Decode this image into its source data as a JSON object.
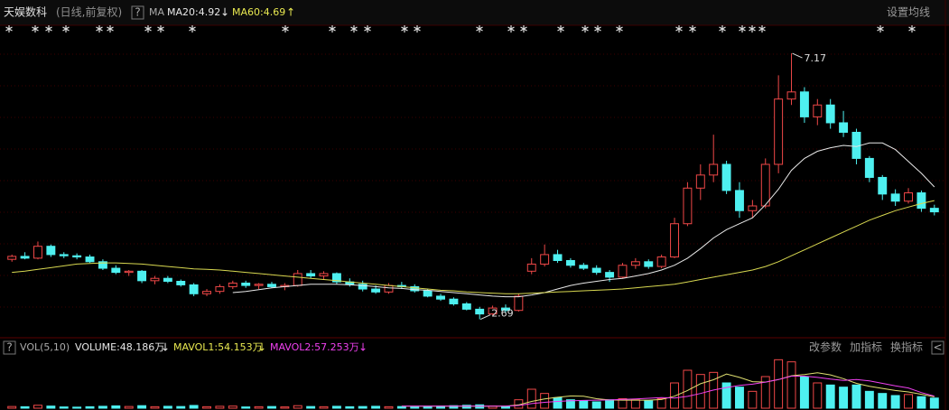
{
  "header": {
    "name": "天娱数科",
    "period": "(日线,前复权)",
    "help": "?",
    "indicator": "MA",
    "ma20": "MA20:4.92",
    "ma20_arrow": "↓",
    "ma60": "MA60:4.69",
    "ma60_arrow": "↑",
    "settings": "设置均线"
  },
  "volume_header": {
    "help": "?",
    "indicator": "VOL(5,10)",
    "volume": "VOLUME:48.186万",
    "volume_arrow": "↓",
    "mavol1": "MAVOL1:54.153万",
    "mavol1_arrow": "↓",
    "mavol2": "MAVOL2:57.253万",
    "mavol2_arrow": "↓",
    "edit": "改参数",
    "add": "加指标",
    "switch": "换指标",
    "collapse": "<"
  },
  "chart_data": {
    "type": "candlestick",
    "ylim": [
      2.44,
      7.46
    ],
    "up_color": "#f04848",
    "down_color": "#4ef0f0",
    "candles": [
      [
        3.7,
        3.78,
        3.66,
        3.75
      ],
      [
        3.75,
        3.82,
        3.7,
        3.72
      ],
      [
        3.72,
        4.0,
        3.7,
        3.92
      ],
      [
        3.92,
        3.95,
        3.74,
        3.78
      ],
      [
        3.78,
        3.82,
        3.72,
        3.76
      ],
      [
        3.76,
        3.8,
        3.7,
        3.74
      ],
      [
        3.74,
        3.78,
        3.64,
        3.66
      ],
      [
        3.66,
        3.7,
        3.52,
        3.55
      ],
      [
        3.55,
        3.6,
        3.45,
        3.48
      ],
      [
        3.48,
        3.52,
        3.42,
        3.5
      ],
      [
        3.5,
        3.52,
        3.3,
        3.34
      ],
      [
        3.34,
        3.42,
        3.28,
        3.38
      ],
      [
        3.38,
        3.42,
        3.3,
        3.33
      ],
      [
        3.33,
        3.36,
        3.24,
        3.27
      ],
      [
        3.27,
        3.3,
        3.08,
        3.12
      ],
      [
        3.12,
        3.2,
        3.08,
        3.16
      ],
      [
        3.16,
        3.28,
        3.12,
        3.24
      ],
      [
        3.24,
        3.34,
        3.2,
        3.3
      ],
      [
        3.3,
        3.34,
        3.22,
        3.26
      ],
      [
        3.26,
        3.3,
        3.2,
        3.28
      ],
      [
        3.28,
        3.32,
        3.22,
        3.24
      ],
      [
        3.24,
        3.3,
        3.18,
        3.26
      ],
      [
        3.26,
        3.52,
        3.24,
        3.46
      ],
      [
        3.46,
        3.52,
        3.38,
        3.42
      ],
      [
        3.42,
        3.5,
        3.36,
        3.46
      ],
      [
        3.46,
        3.48,
        3.28,
        3.32
      ],
      [
        3.32,
        3.38,
        3.24,
        3.28
      ],
      [
        3.28,
        3.34,
        3.16,
        3.2
      ],
      [
        3.2,
        3.26,
        3.12,
        3.15
      ],
      [
        3.15,
        3.3,
        3.12,
        3.26
      ],
      [
        3.26,
        3.32,
        3.2,
        3.24
      ],
      [
        3.24,
        3.28,
        3.14,
        3.17
      ],
      [
        3.17,
        3.2,
        3.06,
        3.08
      ],
      [
        3.08,
        3.12,
        3.0,
        3.03
      ],
      [
        3.03,
        3.06,
        2.92,
        2.95
      ],
      [
        2.95,
        2.98,
        2.84,
        2.86
      ],
      [
        2.86,
        2.9,
        2.69,
        2.78
      ],
      [
        2.78,
        2.92,
        2.76,
        2.88
      ],
      [
        2.88,
        2.94,
        2.8,
        2.84
      ],
      [
        2.84,
        3.12,
        2.82,
        3.08
      ],
      [
        3.5,
        3.72,
        3.45,
        3.62
      ],
      [
        3.62,
        3.95,
        3.58,
        3.78
      ],
      [
        3.78,
        3.86,
        3.64,
        3.68
      ],
      [
        3.68,
        3.72,
        3.56,
        3.6
      ],
      [
        3.6,
        3.64,
        3.52,
        3.55
      ],
      [
        3.55,
        3.6,
        3.44,
        3.48
      ],
      [
        3.48,
        3.52,
        3.32,
        3.4
      ],
      [
        3.4,
        3.64,
        3.38,
        3.6
      ],
      [
        3.6,
        3.72,
        3.54,
        3.66
      ],
      [
        3.66,
        3.7,
        3.54,
        3.58
      ],
      [
        3.58,
        3.78,
        3.55,
        3.74
      ],
      [
        3.74,
        4.4,
        3.72,
        4.3
      ],
      [
        4.3,
        5.0,
        4.26,
        4.9
      ],
      [
        4.9,
        5.3,
        4.7,
        5.12
      ],
      [
        5.12,
        5.8,
        5.0,
        5.3
      ],
      [
        5.3,
        5.36,
        4.8,
        4.86
      ],
      [
        4.86,
        5.0,
        4.4,
        4.52
      ],
      [
        4.52,
        4.7,
        4.4,
        4.6
      ],
      [
        4.6,
        5.4,
        4.56,
        5.3
      ],
      [
        5.3,
        6.8,
        5.15,
        6.4
      ],
      [
        6.4,
        7.17,
        6.3,
        6.52
      ],
      [
        6.52,
        6.6,
        6.0,
        6.1
      ],
      [
        6.1,
        6.4,
        5.96,
        6.3
      ],
      [
        6.3,
        6.4,
        5.9,
        6.0
      ],
      [
        6.0,
        6.2,
        5.76,
        5.84
      ],
      [
        5.84,
        5.9,
        5.3,
        5.4
      ],
      [
        5.4,
        5.44,
        5.0,
        5.08
      ],
      [
        5.08,
        5.12,
        4.7,
        4.8
      ],
      [
        4.8,
        4.88,
        4.6,
        4.68
      ],
      [
        4.68,
        4.9,
        4.64,
        4.82
      ],
      [
        4.82,
        4.86,
        4.5,
        4.56
      ],
      [
        4.56,
        4.62,
        4.44,
        4.5
      ]
    ],
    "ma_series": [
      {
        "color": "#e8e8e8",
        "values": [
          null,
          null,
          null,
          null,
          null,
          null,
          null,
          null,
          null,
          null,
          null,
          null,
          null,
          null,
          null,
          null,
          null,
          3.14,
          3.16,
          3.19,
          3.22,
          3.24,
          3.26,
          3.28,
          3.28,
          3.28,
          3.27,
          3.26,
          3.24,
          3.22,
          3.21,
          3.19,
          3.18,
          3.16,
          3.14,
          3.12,
          3.1,
          3.08,
          3.07,
          3.07,
          3.1,
          3.14,
          3.2,
          3.26,
          3.3,
          3.33,
          3.36,
          3.38,
          3.42,
          3.46,
          3.52,
          3.6,
          3.72,
          3.88,
          4.06,
          4.2,
          4.3,
          4.4,
          4.62,
          4.88,
          5.2,
          5.4,
          5.52,
          5.58,
          5.62,
          5.6,
          5.66,
          5.66,
          5.55,
          5.35,
          5.15,
          4.92
        ]
      },
      {
        "color": "#d8d850",
        "values": [
          3.48,
          3.5,
          3.53,
          3.56,
          3.59,
          3.62,
          3.63,
          3.64,
          3.64,
          3.63,
          3.62,
          3.6,
          3.58,
          3.56,
          3.54,
          3.53,
          3.52,
          3.5,
          3.48,
          3.46,
          3.44,
          3.42,
          3.4,
          3.38,
          3.36,
          3.34,
          3.32,
          3.3,
          3.28,
          3.26,
          3.24,
          3.22,
          3.2,
          3.18,
          3.17,
          3.15,
          3.14,
          3.13,
          3.12,
          3.12,
          3.13,
          3.14,
          3.15,
          3.16,
          3.17,
          3.18,
          3.19,
          3.2,
          3.22,
          3.24,
          3.26,
          3.28,
          3.32,
          3.36,
          3.4,
          3.44,
          3.48,
          3.52,
          3.58,
          3.66,
          3.76,
          3.86,
          3.96,
          4.06,
          4.16,
          4.26,
          4.36,
          4.44,
          4.52,
          4.58,
          4.64,
          4.69
        ]
      }
    ],
    "volume_ylim": [
      0,
      240
    ],
    "volume": [
      8,
      7,
      14,
      10,
      6,
      5,
      7,
      9,
      11,
      8,
      12,
      7,
      9,
      8,
      13,
      7,
      9,
      10,
      6,
      7,
      8,
      6,
      12,
      8,
      7,
      9,
      7,
      8,
      9,
      7,
      8,
      6,
      9,
      10,
      12,
      14,
      16,
      10,
      9,
      40,
      90,
      70,
      50,
      40,
      35,
      30,
      40,
      45,
      40,
      35,
      45,
      120,
      180,
      160,
      170,
      120,
      100,
      80,
      150,
      230,
      220,
      150,
      120,
      110,
      100,
      110,
      80,
      70,
      60,
      65,
      55,
      48.186
    ],
    "volume_series": [
      {
        "color": "#e0e070",
        "values": [
          null,
          null,
          null,
          null,
          null,
          null,
          null,
          null,
          null,
          null,
          null,
          null,
          null,
          null,
          null,
          null,
          null,
          null,
          null,
          null,
          null,
          null,
          null,
          null,
          null,
          null,
          null,
          null,
          null,
          null,
          10,
          10,
          10,
          10,
          10,
          10,
          10,
          10,
          10,
          16,
          32,
          44,
          52,
          58,
          57,
          45,
          39,
          38,
          38,
          38,
          41,
          57,
          84,
          116,
          135,
          162,
          146,
          126,
          124,
          136,
          154,
          160,
          168,
          158,
          140,
          118,
          104,
          94,
          84,
          77,
          66,
          54.153
        ]
      },
      {
        "color": "#f040f0",
        "values": [
          null,
          null,
          null,
          null,
          null,
          null,
          null,
          null,
          null,
          null,
          null,
          null,
          null,
          null,
          null,
          null,
          null,
          null,
          null,
          null,
          null,
          null,
          null,
          null,
          null,
          null,
          null,
          null,
          null,
          null,
          10,
          10,
          10,
          10,
          10,
          10,
          10,
          10,
          10,
          13,
          22,
          28,
          32,
          35,
          37,
          38,
          39,
          42,
          44,
          47,
          50,
          48,
          56,
          70,
          86,
          98,
          108,
          114,
          124,
          136,
          152,
          152,
          146,
          138,
          132,
          136,
          130,
          118,
          106,
          96,
          74,
          57.253
        ]
      }
    ]
  }
}
